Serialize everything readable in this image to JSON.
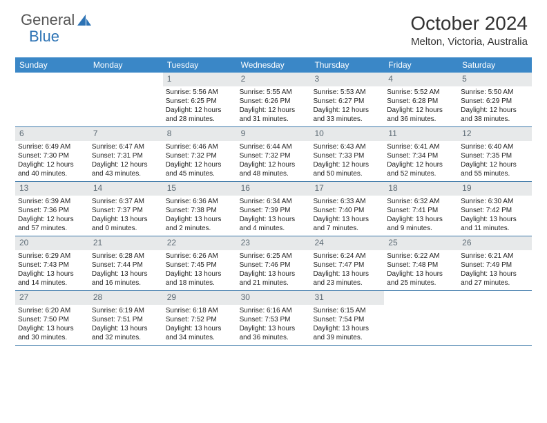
{
  "brand": {
    "word1": "General",
    "word2": "Blue"
  },
  "header": {
    "month_title": "October 2024",
    "location": "Melton, Victoria, Australia"
  },
  "colors": {
    "header_bg": "#3a87c7",
    "daynum_bg": "#e7e9ea",
    "daynum_color": "#5c6a74",
    "rule": "#3a77a8",
    "brand_blue": "#2d73b5",
    "text": "#222222"
  },
  "day_labels": [
    "Sunday",
    "Monday",
    "Tuesday",
    "Wednesday",
    "Thursday",
    "Friday",
    "Saturday"
  ],
  "weeks": [
    [
      null,
      null,
      {
        "n": "1",
        "sr": "5:56 AM",
        "ss": "6:25 PM",
        "dl": "12 hours and 28 minutes."
      },
      {
        "n": "2",
        "sr": "5:55 AM",
        "ss": "6:26 PM",
        "dl": "12 hours and 31 minutes."
      },
      {
        "n": "3",
        "sr": "5:53 AM",
        "ss": "6:27 PM",
        "dl": "12 hours and 33 minutes."
      },
      {
        "n": "4",
        "sr": "5:52 AM",
        "ss": "6:28 PM",
        "dl": "12 hours and 36 minutes."
      },
      {
        "n": "5",
        "sr": "5:50 AM",
        "ss": "6:29 PM",
        "dl": "12 hours and 38 minutes."
      }
    ],
    [
      {
        "n": "6",
        "sr": "6:49 AM",
        "ss": "7:30 PM",
        "dl": "12 hours and 40 minutes."
      },
      {
        "n": "7",
        "sr": "6:47 AM",
        "ss": "7:31 PM",
        "dl": "12 hours and 43 minutes."
      },
      {
        "n": "8",
        "sr": "6:46 AM",
        "ss": "7:32 PM",
        "dl": "12 hours and 45 minutes."
      },
      {
        "n": "9",
        "sr": "6:44 AM",
        "ss": "7:32 PM",
        "dl": "12 hours and 48 minutes."
      },
      {
        "n": "10",
        "sr": "6:43 AM",
        "ss": "7:33 PM",
        "dl": "12 hours and 50 minutes."
      },
      {
        "n": "11",
        "sr": "6:41 AM",
        "ss": "7:34 PM",
        "dl": "12 hours and 52 minutes."
      },
      {
        "n": "12",
        "sr": "6:40 AM",
        "ss": "7:35 PM",
        "dl": "12 hours and 55 minutes."
      }
    ],
    [
      {
        "n": "13",
        "sr": "6:39 AM",
        "ss": "7:36 PM",
        "dl": "12 hours and 57 minutes."
      },
      {
        "n": "14",
        "sr": "6:37 AM",
        "ss": "7:37 PM",
        "dl": "13 hours and 0 minutes."
      },
      {
        "n": "15",
        "sr": "6:36 AM",
        "ss": "7:38 PM",
        "dl": "13 hours and 2 minutes."
      },
      {
        "n": "16",
        "sr": "6:34 AM",
        "ss": "7:39 PM",
        "dl": "13 hours and 4 minutes."
      },
      {
        "n": "17",
        "sr": "6:33 AM",
        "ss": "7:40 PM",
        "dl": "13 hours and 7 minutes."
      },
      {
        "n": "18",
        "sr": "6:32 AM",
        "ss": "7:41 PM",
        "dl": "13 hours and 9 minutes."
      },
      {
        "n": "19",
        "sr": "6:30 AM",
        "ss": "7:42 PM",
        "dl": "13 hours and 11 minutes."
      }
    ],
    [
      {
        "n": "20",
        "sr": "6:29 AM",
        "ss": "7:43 PM",
        "dl": "13 hours and 14 minutes."
      },
      {
        "n": "21",
        "sr": "6:28 AM",
        "ss": "7:44 PM",
        "dl": "13 hours and 16 minutes."
      },
      {
        "n": "22",
        "sr": "6:26 AM",
        "ss": "7:45 PM",
        "dl": "13 hours and 18 minutes."
      },
      {
        "n": "23",
        "sr": "6:25 AM",
        "ss": "7:46 PM",
        "dl": "13 hours and 21 minutes."
      },
      {
        "n": "24",
        "sr": "6:24 AM",
        "ss": "7:47 PM",
        "dl": "13 hours and 23 minutes."
      },
      {
        "n": "25",
        "sr": "6:22 AM",
        "ss": "7:48 PM",
        "dl": "13 hours and 25 minutes."
      },
      {
        "n": "26",
        "sr": "6:21 AM",
        "ss": "7:49 PM",
        "dl": "13 hours and 27 minutes."
      }
    ],
    [
      {
        "n": "27",
        "sr": "6:20 AM",
        "ss": "7:50 PM",
        "dl": "13 hours and 30 minutes."
      },
      {
        "n": "28",
        "sr": "6:19 AM",
        "ss": "7:51 PM",
        "dl": "13 hours and 32 minutes."
      },
      {
        "n": "29",
        "sr": "6:18 AM",
        "ss": "7:52 PM",
        "dl": "13 hours and 34 minutes."
      },
      {
        "n": "30",
        "sr": "6:16 AM",
        "ss": "7:53 PM",
        "dl": "13 hours and 36 minutes."
      },
      {
        "n": "31",
        "sr": "6:15 AM",
        "ss": "7:54 PM",
        "dl": "13 hours and 39 minutes."
      },
      null,
      null
    ]
  ],
  "labels": {
    "sunrise_prefix": "Sunrise: ",
    "sunset_prefix": "Sunset: ",
    "daylight_prefix": "Daylight: "
  }
}
